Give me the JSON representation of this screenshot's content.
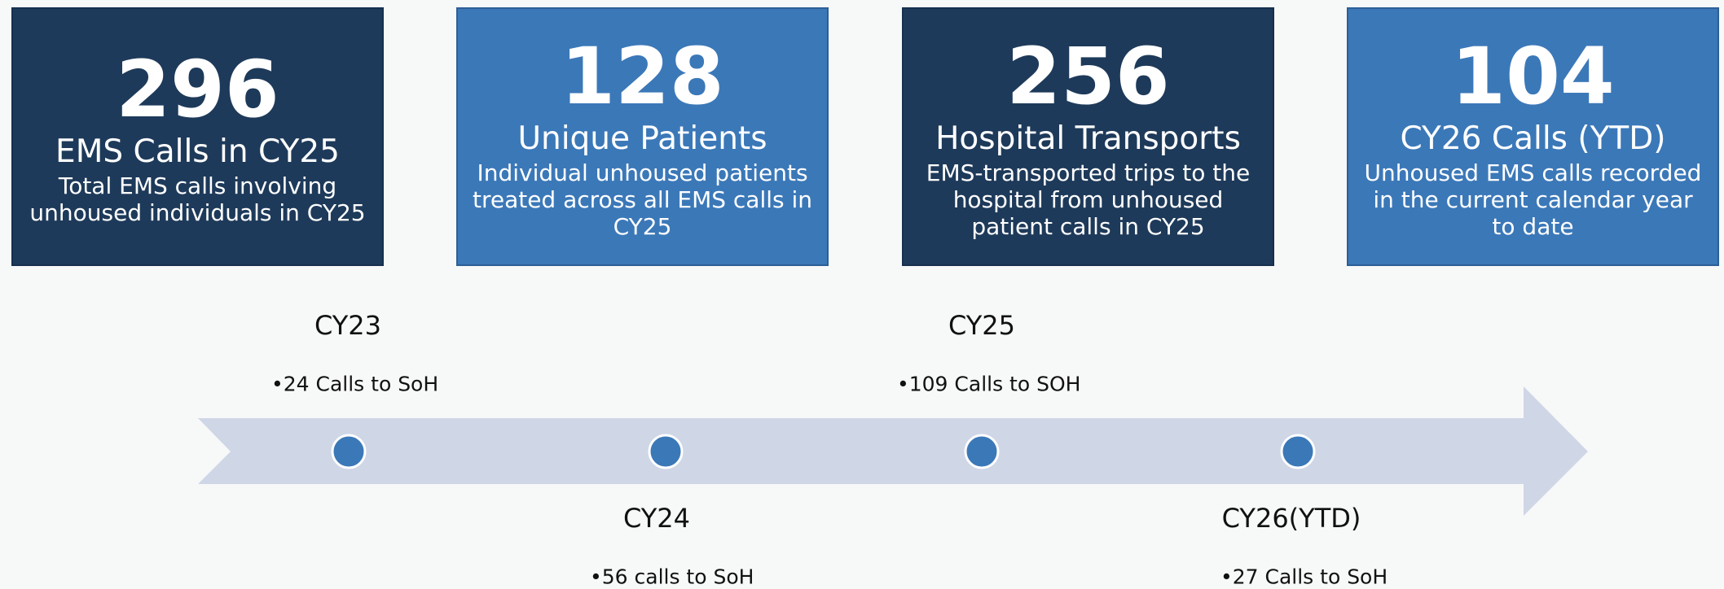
{
  "cards": [
    {
      "number": "296",
      "title": "EMS Calls in CY25",
      "description": "Total EMS calls involving unhoused individuals in CY25"
    },
    {
      "number": "128",
      "title": "Unique Patients",
      "description": "Individual unhoused patients treated across all EMS calls in CY25"
    },
    {
      "number": "256",
      "title": "Hospital Transports",
      "description": "EMS-transported trips to the hospital from unhoused patient calls in CY25"
    },
    {
      "number": "104",
      "title": "CY26 Calls (YTD)",
      "description": "Unhoused EMS calls recorded in the current calendar year to date"
    }
  ],
  "timeline": [
    {
      "label": "CY23",
      "text": "24 Calls to SoH"
    },
    {
      "label": "CY24",
      "text": "56 calls to SoH"
    },
    {
      "label": "CY25",
      "text": "109 Calls to SOH"
    },
    {
      "label": "CY26(YTD)",
      "text": "27 Calls to SoH"
    }
  ]
}
